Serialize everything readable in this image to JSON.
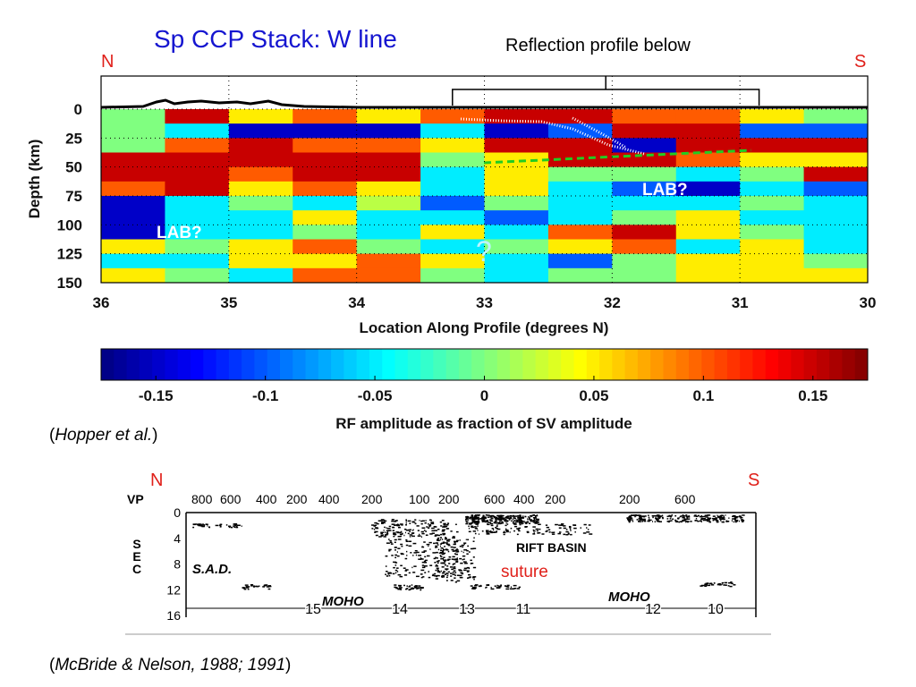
{
  "slide": {
    "title": "Sp CCP Stack: W line",
    "north_label": "N",
    "south_label": "S",
    "reflection_note": "Reflection profile below",
    "citation_top": "Hopper et al.",
    "citation_bottom": "McBride & Nelson, 1988; 1991",
    "colors": {
      "title": "#1515d0",
      "ns_labels": "#e0201a",
      "moho_dash": "#22cc22"
    }
  },
  "chart_data": [
    {
      "type": "heatmap",
      "title": "Sp CCP Stack: W line",
      "xlabel": "Location Along Profile (degrees N)",
      "ylabel": "Depth (km)",
      "xlim": [
        36,
        30
      ],
      "ylim": [
        0,
        150
      ],
      "xticks": [
        "36",
        "35",
        "34",
        "33",
        "32",
        "31",
        "30"
      ],
      "yticks": [
        "0",
        "25",
        "50",
        "75",
        "100",
        "125",
        "150"
      ],
      "grid": "dotted",
      "x_centers": [
        35.75,
        35.25,
        34.75,
        34.25,
        33.75,
        33.25,
        32.75,
        32.25,
        31.75,
        31.25,
        30.75,
        30.25
      ],
      "depth_centers": [
        6,
        19,
        31,
        44,
        56,
        69,
        81,
        94,
        106,
        119,
        131,
        144
      ],
      "values": [
        [
          0,
          0.15,
          0.05,
          0.1,
          0.05,
          0.1,
          0.15,
          0.15,
          0.1,
          0.1,
          0.05,
          0
        ],
        [
          0,
          -0.05,
          -0.15,
          -0.15,
          -0.15,
          -0.05,
          -0.15,
          -0.1,
          0.15,
          0.15,
          -0.1,
          -0.1
        ],
        [
          0,
          0.1,
          0.15,
          0.1,
          0.1,
          0.05,
          0.15,
          0.15,
          -0.15,
          0.15,
          0.15,
          0.15
        ],
        [
          0.15,
          0.15,
          0.15,
          0.15,
          0.15,
          0,
          0.05,
          0.15,
          0.15,
          0.1,
          0.05,
          0.05
        ],
        [
          0.15,
          0.15,
          0.1,
          0.15,
          0.15,
          -0.05,
          0.05,
          0,
          0,
          -0.05,
          0,
          0.15
        ],
        [
          0.1,
          0.15,
          0.05,
          0.1,
          0.05,
          -0.05,
          0.05,
          -0.05,
          -0.1,
          -0.15,
          -0.05,
          -0.1
        ],
        [
          -0.15,
          -0.05,
          0,
          -0.05,
          0.02,
          -0.1,
          0,
          -0.05,
          -0.05,
          -0.05,
          0,
          -0.05
        ],
        [
          -0.15,
          -0.05,
          -0.05,
          0.05,
          -0.05,
          -0.05,
          -0.1,
          -0.05,
          0,
          0.05,
          -0.05,
          -0.05
        ],
        [
          -0.15,
          -0.05,
          -0.05,
          0,
          -0.05,
          0.05,
          -0.05,
          0.1,
          0.15,
          0.05,
          0,
          -0.05
        ],
        [
          0.05,
          0,
          0.05,
          0.1,
          0,
          -0.05,
          0,
          0.05,
          0.1,
          -0.05,
          0.05,
          -0.05
        ],
        [
          -0.05,
          -0.05,
          0.05,
          0.05,
          0.1,
          0.05,
          -0.05,
          -0.1,
          0,
          0.05,
          0.05,
          0
        ],
        [
          0.05,
          0,
          -0.05,
          0.1,
          0.1,
          0,
          -0.05,
          0,
          0,
          0.05,
          0.05,
          0.05
        ]
      ],
      "annotations": [
        {
          "text": "LAB?",
          "x": 35.4,
          "depth": 103
        },
        {
          "text": "LAB?",
          "x": 31.7,
          "depth": 67
        },
        {
          "text": "?",
          "x": 33.0,
          "depth": 120
        }
      ],
      "bracket": {
        "label": "Reflection profile below",
        "x_range": [
          33.25,
          30.85
        ]
      },
      "colorbar": {
        "label": "RF amplitude as fraction of SV amplitude",
        "range": [
          -0.175,
          0.175
        ],
        "ticks": [
          "-0.15",
          "-0.1",
          "-0.05",
          "0",
          "0.05",
          "0.1",
          "0.15"
        ],
        "colormap": "jet"
      }
    },
    {
      "type": "image",
      "title": "Reflection profile",
      "top_axis_label": "VP",
      "top_ticks": [
        "800",
        "600",
        "400",
        "200",
        "400",
        "200",
        "100",
        "200",
        "600",
        "400",
        "200",
        "200",
        "600"
      ],
      "left_axis_label": "SEC",
      "left_ticks": [
        "0",
        "4",
        "8",
        "12",
        "16"
      ],
      "line_numbers": [
        "15",
        "14",
        "13",
        "11",
        "12",
        "10"
      ],
      "labels": [
        "S.A.D.",
        "MOHO",
        "RIFT BASIN",
        "MOHO",
        "suture"
      ]
    }
  ]
}
